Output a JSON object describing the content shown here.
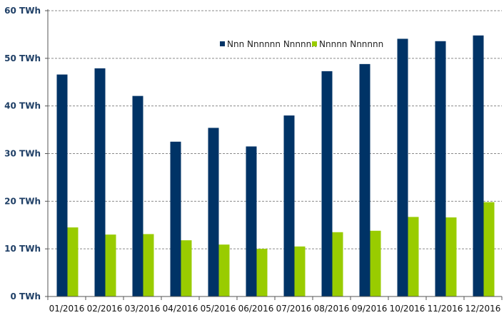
{
  "chart_data": {
    "type": "bar",
    "categories": [
      "01/2016",
      "02/2016",
      "03/2016",
      "04/2016",
      "05/2016",
      "06/2016",
      "07/2016",
      "08/2016",
      "09/2016",
      "10/2016",
      "11/2016",
      "12/2016"
    ],
    "series": [
      {
        "name": "Nnn Nnnnnn Nnnnnn",
        "color": "#003366",
        "values": [
          46.6,
          47.9,
          42.1,
          32.5,
          35.4,
          31.5,
          38.0,
          47.3,
          48.8,
          54.1,
          53.6,
          54.8
        ]
      },
      {
        "name": "Nnnnn Nnnnnn",
        "color": "#99cc00",
        "values": [
          14.5,
          13.0,
          13.1,
          11.8,
          10.9,
          10.0,
          10.5,
          13.5,
          13.8,
          16.7,
          16.6,
          19.8
        ]
      }
    ],
    "y_ticks": [
      "0 TWh",
      "10 TWh",
      "20 TWh",
      "30 TWh",
      "40 TWh",
      "50 TWh",
      "60 TWh"
    ],
    "ylim": [
      0,
      60
    ],
    "grid": true,
    "legend_position": "top-right"
  }
}
